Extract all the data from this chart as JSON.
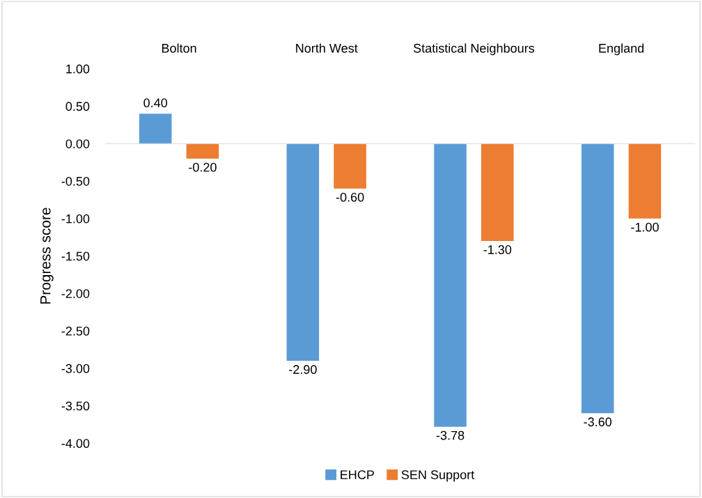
{
  "chart_data": {
    "type": "bar",
    "ylabel": "Progress score",
    "categories": [
      "Bolton",
      "North West",
      "Statistical Neighbours",
      "England"
    ],
    "series": [
      {
        "name": "EHCP",
        "color": "#5b9bd5",
        "values": [
          0.4,
          -2.9,
          -3.78,
          -3.6
        ],
        "value_labels": [
          "0.40",
          "-2.90",
          "-3.78",
          "-3.60"
        ]
      },
      {
        "name": "SEN Support",
        "color": "#ed7d31",
        "values": [
          -0.2,
          -0.6,
          -1.3,
          -1.0
        ],
        "value_labels": [
          "-0.20",
          "-0.60",
          "-1.30",
          "-1.00"
        ]
      }
    ],
    "ylim": [
      -4.0,
      1.0
    ],
    "yticks": [
      {
        "value": 1.0,
        "label": "1.00"
      },
      {
        "value": 0.5,
        "label": "0.50"
      },
      {
        "value": 0.0,
        "label": "0.00"
      },
      {
        "value": -0.5,
        "label": "-0.50"
      },
      {
        "value": -1.0,
        "label": "-1.00"
      },
      {
        "value": -1.5,
        "label": "-1.50"
      },
      {
        "value": -2.0,
        "label": "-2.00"
      },
      {
        "value": -2.5,
        "label": "-2.50"
      },
      {
        "value": -3.0,
        "label": "-3.00"
      },
      {
        "value": -3.5,
        "label": "-3.50"
      },
      {
        "value": -4.0,
        "label": "-4.00"
      }
    ],
    "legend": "bottom"
  }
}
